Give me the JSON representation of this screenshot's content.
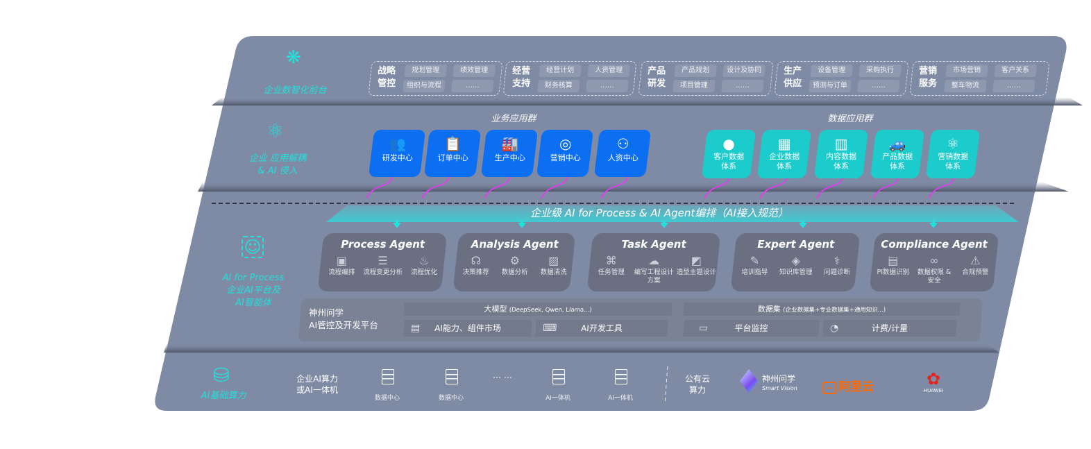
{
  "colors": {
    "panel": "#7f8aa5",
    "accent_cyan": "#22e0dc",
    "business_tile": "#0c6ff2",
    "data_tile": "#1ccbcb",
    "agent_card": "#6a7082",
    "arrow_magenta": "#e33df0",
    "aliyun": "#ff6a00",
    "huawei": "#e6241e"
  },
  "layer1": {
    "label": "企业数智化前台",
    "icon": "brain-icon",
    "groups": [
      {
        "title": "战略管控",
        "items": [
          "规划管理",
          "绩效管理",
          "组织与流程",
          "……"
        ]
      },
      {
        "title": "经营支持",
        "items": [
          "经营计划",
          "人资管理",
          "财务核算",
          "……"
        ]
      },
      {
        "title": "产品研发",
        "items": [
          "产品规划",
          "设计及协同",
          "项目管理",
          "……"
        ]
      },
      {
        "title": "生产供应",
        "items": [
          "设备管理",
          "采购执行",
          "预测与订单",
          "……"
        ]
      },
      {
        "title": "营销服务",
        "items": [
          "市场营销",
          "客户关系",
          "整车物流",
          "……"
        ]
      }
    ]
  },
  "layer2": {
    "label_line1": "企业 应用解耦",
    "label_line2": "& AI 侵入",
    "icon": "molecule-icon",
    "business_group": {
      "title": "业务应用群",
      "tiles": [
        {
          "label": "研发中心",
          "icon": "team-icon"
        },
        {
          "label": "订单中心",
          "icon": "clipboard-icon"
        },
        {
          "label": "生产中心",
          "icon": "factory-icon"
        },
        {
          "label": "营销中心",
          "icon": "target-icon"
        },
        {
          "label": "人资中心",
          "icon": "people-icon"
        }
      ]
    },
    "data_group": {
      "title": "数据应用群",
      "tiles": [
        {
          "line1": "客户数据",
          "line2": "体系",
          "icon": "user-icon"
        },
        {
          "line1": "企业数据",
          "line2": "体系",
          "icon": "building-icon"
        },
        {
          "line1": "内容数据",
          "line2": "体系",
          "icon": "books-icon"
        },
        {
          "line1": "产品数据",
          "line2": "体系",
          "icon": "car-icon"
        },
        {
          "line1": "营销数据",
          "line2": "体系",
          "icon": "atom-icon"
        }
      ]
    }
  },
  "layer3": {
    "label_line1": "AI for Process",
    "label_line2": "企业AI平台及",
    "label_line3": "AI智能体",
    "icon": "face-scan-icon",
    "banner": "企业级 AI for Process & AI Agent编排（AI接入规范）",
    "agents": [
      {
        "title": "Process Agent",
        "items": [
          {
            "label": "流程编排",
            "icon": "chart-icon"
          },
          {
            "label": "流程变更分析",
            "icon": "list-icon"
          },
          {
            "label": "流程优化",
            "icon": "optimize-icon"
          }
        ]
      },
      {
        "title": "Analysis Agent",
        "items": [
          {
            "label": "决策推荐",
            "icon": "head-icon"
          },
          {
            "label": "数据分析",
            "icon": "gear-icon"
          },
          {
            "label": "数据清洗",
            "icon": "clean-icon"
          }
        ]
      },
      {
        "title": "Task Agent",
        "items": [
          {
            "label": "任务管理",
            "icon": "network-icon"
          },
          {
            "label": "编写工程设计方案",
            "icon": "cloud-icon"
          },
          {
            "label": "造型主题设计",
            "icon": "design-icon"
          }
        ]
      },
      {
        "title": "Expert Agent",
        "items": [
          {
            "label": "培训指导",
            "icon": "tools-icon"
          },
          {
            "label": "知识库管理",
            "icon": "layers-icon"
          },
          {
            "label": "问题诊断",
            "icon": "diagnose-icon"
          }
        ]
      },
      {
        "title": "Compliance Agent",
        "items": [
          {
            "label": "PI数据识别",
            "icon": "id-card-icon"
          },
          {
            "label": "数据权限 & 安全",
            "icon": "link-icon"
          },
          {
            "label": "合规预警",
            "icon": "alert-icon"
          }
        ]
      }
    ],
    "platform": {
      "label_line1": "神州问学",
      "label_line2": "AI管控及开发平台",
      "model_title": "大模型",
      "model_note": "(DeepSeek, Qwen, Llama...)",
      "dataset_title": "数据集",
      "dataset_note": "(企业数据集+专业数据集+通用知识...)",
      "items": [
        {
          "label": "AI能力、组件市场",
          "icon": "market-icon"
        },
        {
          "label": "AI开发工具",
          "icon": "dev-tool-icon"
        },
        {
          "label": "平台监控",
          "icon": "monitor-icon"
        },
        {
          "label": "计费/计量",
          "icon": "gauge-icon"
        }
      ]
    }
  },
  "layer4": {
    "label": "AI基础算力",
    "icon": "database-icon",
    "onprem_line1": "企业AI算力",
    "onprem_line2": "或AI一体机",
    "servers": [
      "数据中心",
      "数据中心",
      "AI一体机",
      "AI一体机"
    ],
    "ellipsis": "… …",
    "cloud_line1": "公有云",
    "cloud_line2": "算力",
    "logos": {
      "shenzhou": "神州问学",
      "shenzhou_sub": "Smart Vision",
      "aliyun": "阿里云",
      "huawei": "HUAWEI"
    }
  }
}
